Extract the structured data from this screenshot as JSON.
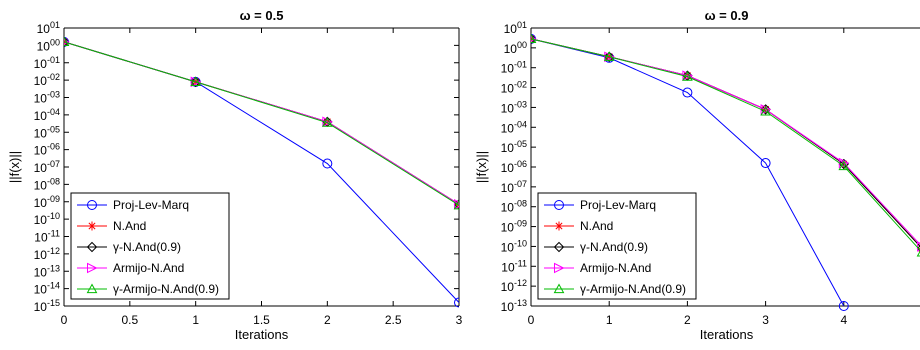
{
  "chart_data": [
    {
      "type": "line",
      "title": "ω = 0.5",
      "xlabel": "Iterations",
      "ylabel": "||f(x)||",
      "yscale": "log",
      "xlim": [
        0,
        3
      ],
      "ylim_exp": [
        -15,
        1
      ],
      "xticks": [
        "0",
        "0.5",
        "1",
        "1.5",
        "2",
        "2.5",
        "3"
      ],
      "xtick_values": [
        0,
        0.5,
        1,
        1.5,
        2,
        2.5,
        3
      ],
      "ytick_exponents": [
        1,
        0,
        -1,
        -2,
        -3,
        -4,
        -5,
        -6,
        -7,
        -8,
        -9,
        -10,
        -11,
        -12,
        -13,
        -14,
        -15
      ],
      "grid": false,
      "legend_position": "bottom-left",
      "series": [
        {
          "name": "Proj-Lev-Marq",
          "color": "#0000ff",
          "marker": "circle",
          "x": [
            0,
            1,
            2,
            3
          ],
          "log10_y": [
            0.2,
            -2.1,
            -6.8,
            -14.8
          ]
        },
        {
          "name": "N.And",
          "color": "#ff0000",
          "marker": "star",
          "x": [
            0,
            1,
            2,
            3
          ],
          "log10_y": [
            0.2,
            -2.1,
            -4.4,
            -9.15
          ]
        },
        {
          "name": "γ-N.And(0.9)",
          "color": "#000000",
          "marker": "diamond",
          "x": [
            0,
            1,
            2,
            3
          ],
          "log10_y": [
            0.2,
            -2.1,
            -4.4,
            -9.15
          ]
        },
        {
          "name": "Armijo-N.And",
          "color": "#ff00ff",
          "marker": "triangle-right",
          "x": [
            0,
            1,
            2,
            3
          ],
          "log10_y": [
            0.2,
            -2.1,
            -4.4,
            -9.15
          ]
        },
        {
          "name": "γ-Armijo-N.And(0.9)",
          "color": "#00bb00",
          "marker": "triangle-up",
          "x": [
            0,
            1,
            2,
            3
          ],
          "log10_y": [
            0.2,
            -2.1,
            -4.45,
            -9.2
          ]
        }
      ]
    },
    {
      "type": "line",
      "title": "ω = 0.9",
      "xlabel": "Iterations",
      "ylabel": "||f(x)||",
      "yscale": "log",
      "xlim": [
        0,
        5
      ],
      "ylim_exp": [
        -13,
        1
      ],
      "xticks": [
        "0",
        "1",
        "2",
        "3",
        "4"
      ],
      "xtick_values": [
        0,
        1,
        2,
        3,
        4
      ],
      "ytick_exponents": [
        1,
        0,
        -1,
        -2,
        -3,
        -4,
        -5,
        -6,
        -7,
        -8,
        -9,
        -10,
        -11,
        -12,
        -13
      ],
      "grid": false,
      "legend_position": "bottom-left",
      "series": [
        {
          "name": "Proj-Lev-Marq",
          "color": "#0000ff",
          "marker": "circle",
          "x": [
            0,
            1,
            2,
            3,
            4
          ],
          "log10_y": [
            0.45,
            -0.5,
            -2.25,
            -5.8,
            -13.0
          ]
        },
        {
          "name": "N.And",
          "color": "#ff0000",
          "marker": "star",
          "x": [
            0,
            1,
            2,
            3,
            4,
            5
          ],
          "log10_y": [
            0.45,
            -0.45,
            -1.4,
            -3.1,
            -5.85,
            -10.1
          ]
        },
        {
          "name": "γ-N.And(0.9)",
          "color": "#000000",
          "marker": "diamond",
          "x": [
            0,
            1,
            2,
            3,
            4,
            5
          ],
          "log10_y": [
            0.45,
            -0.45,
            -1.4,
            -3.1,
            -5.85,
            -10.1
          ]
        },
        {
          "name": "Armijo-N.And",
          "color": "#ff00ff",
          "marker": "triangle-right",
          "x": [
            0,
            1,
            2,
            3,
            4,
            5
          ],
          "log10_y": [
            0.45,
            -0.45,
            -1.4,
            -3.1,
            -5.8,
            -10.0
          ]
        },
        {
          "name": "γ-Armijo-N.And(0.9)",
          "color": "#00bb00",
          "marker": "triangle-up",
          "x": [
            0,
            1,
            2,
            3,
            4,
            5
          ],
          "log10_y": [
            0.45,
            -0.45,
            -1.45,
            -3.2,
            -5.95,
            -10.3
          ]
        }
      ]
    }
  ]
}
